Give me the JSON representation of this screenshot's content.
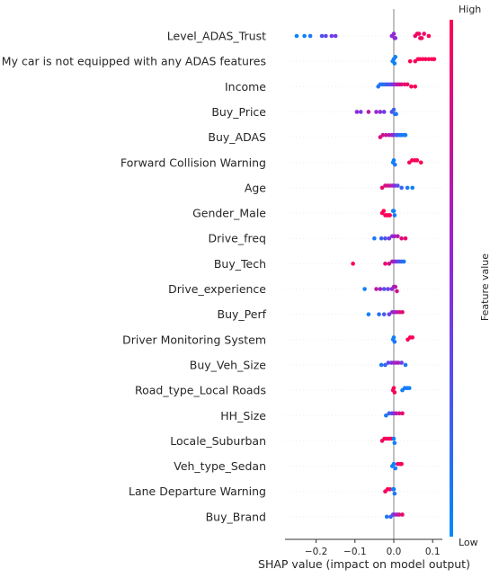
{
  "chart_data": {
    "type": "scatter",
    "subtype": "shap-beeswarm",
    "xlabel": "SHAP value (impact on model output)",
    "xlim": [
      -0.28,
      0.125
    ],
    "x_ticks": [
      -0.2,
      -0.1,
      0.0,
      0.1
    ],
    "x_tick_labels": [
      "−0.2",
      "−0.1",
      "0.0",
      "0.1"
    ],
    "colorbar": {
      "label": "Feature value",
      "high_label": "High",
      "low_label": "Low",
      "low_color": "#008bfb",
      "high_color": "#ff0052"
    },
    "features": [
      {
        "name": "Level_ADAS_Trust",
        "points": [
          {
            "x": -0.25,
            "v": 0.05
          },
          {
            "x": -0.23,
            "v": 0.05
          },
          {
            "x": -0.215,
            "v": 0.1
          },
          {
            "x": -0.185,
            "v": 0.3
          },
          {
            "x": -0.175,
            "v": 0.35
          },
          {
            "x": -0.16,
            "v": 0.4
          },
          {
            "x": -0.15,
            "v": 0.4
          },
          {
            "x": -0.005,
            "v": 0.5
          },
          {
            "x": 0.0,
            "v": 0.55
          },
          {
            "x": 0.002,
            "v": 0.6
          },
          {
            "x": 0.004,
            "v": 0.5
          },
          {
            "x": 0.055,
            "v": 0.9
          },
          {
            "x": 0.06,
            "v": 0.95
          },
          {
            "x": 0.065,
            "v": 0.95
          },
          {
            "x": 0.068,
            "v": 0.9
          },
          {
            "x": 0.072,
            "v": 0.95
          },
          {
            "x": 0.078,
            "v": 0.92
          },
          {
            "x": 0.09,
            "v": 1.0
          }
        ]
      },
      {
        "name": "My car is not equipped with any ADAS features",
        "points": [
          {
            "x": -0.003,
            "v": 0.05
          },
          {
            "x": 0.0,
            "v": 0.05
          },
          {
            "x": 0.002,
            "v": 0.05
          },
          {
            "x": 0.004,
            "v": 0.05
          },
          {
            "x": 0.042,
            "v": 1.0
          },
          {
            "x": 0.055,
            "v": 0.95
          },
          {
            "x": 0.062,
            "v": 1.0
          },
          {
            "x": 0.068,
            "v": 0.98
          },
          {
            "x": 0.075,
            "v": 1.0
          },
          {
            "x": 0.082,
            "v": 0.96
          },
          {
            "x": 0.09,
            "v": 1.0
          },
          {
            "x": 0.098,
            "v": 0.98
          },
          {
            "x": 0.104,
            "v": 1.0
          }
        ]
      },
      {
        "name": "Income",
        "points": [
          {
            "x": -0.04,
            "v": 0.1
          },
          {
            "x": -0.035,
            "v": 0.15
          },
          {
            "x": -0.03,
            "v": 0.1
          },
          {
            "x": -0.025,
            "v": 0.15
          },
          {
            "x": -0.02,
            "v": 0.2
          },
          {
            "x": -0.015,
            "v": 0.3
          },
          {
            "x": -0.01,
            "v": 0.2
          },
          {
            "x": -0.005,
            "v": 0.4
          },
          {
            "x": 0.0,
            "v": 0.5
          },
          {
            "x": 0.005,
            "v": 0.6
          },
          {
            "x": 0.01,
            "v": 0.7
          },
          {
            "x": 0.015,
            "v": 0.8
          },
          {
            "x": 0.02,
            "v": 0.85
          },
          {
            "x": 0.028,
            "v": 0.9
          },
          {
            "x": 0.035,
            "v": 0.95
          },
          {
            "x": 0.045,
            "v": 0.95
          },
          {
            "x": 0.055,
            "v": 1.0
          }
        ]
      },
      {
        "name": "Buy_Price",
        "points": [
          {
            "x": -0.095,
            "v": 0.5
          },
          {
            "x": -0.085,
            "v": 0.45
          },
          {
            "x": -0.065,
            "v": 0.7
          },
          {
            "x": -0.045,
            "v": 0.55
          },
          {
            "x": -0.035,
            "v": 0.5
          },
          {
            "x": -0.025,
            "v": 0.4
          },
          {
            "x": -0.005,
            "v": 0.3
          },
          {
            "x": 0.0,
            "v": 0.2
          },
          {
            "x": 0.003,
            "v": 0.15
          },
          {
            "x": 0.006,
            "v": 0.1
          }
        ]
      },
      {
        "name": "Buy_ADAS",
        "points": [
          {
            "x": -0.035,
            "v": 0.85
          },
          {
            "x": -0.028,
            "v": 0.8
          },
          {
            "x": -0.02,
            "v": 0.75
          },
          {
            "x": -0.012,
            "v": 0.7
          },
          {
            "x": -0.005,
            "v": 0.6
          },
          {
            "x": 0.0,
            "v": 0.5
          },
          {
            "x": 0.006,
            "v": 0.3
          },
          {
            "x": 0.01,
            "v": 0.2
          },
          {
            "x": 0.016,
            "v": 0.15
          },
          {
            "x": 0.02,
            "v": 0.1
          },
          {
            "x": 0.026,
            "v": 0.1
          },
          {
            "x": 0.03,
            "v": 0.05
          }
        ]
      },
      {
        "name": "Forward Collision Warning",
        "points": [
          {
            "x": -0.002,
            "v": 0.05
          },
          {
            "x": 0.0,
            "v": 0.05
          },
          {
            "x": 0.003,
            "v": 0.1
          },
          {
            "x": 0.04,
            "v": 0.95
          },
          {
            "x": 0.047,
            "v": 1.0
          },
          {
            "x": 0.054,
            "v": 0.98
          },
          {
            "x": 0.06,
            "v": 1.0
          },
          {
            "x": 0.07,
            "v": 1.0
          }
        ]
      },
      {
        "name": "Age",
        "points": [
          {
            "x": -0.03,
            "v": 0.9
          },
          {
            "x": -0.022,
            "v": 0.8
          },
          {
            "x": -0.015,
            "v": 0.85
          },
          {
            "x": -0.008,
            "v": 0.7
          },
          {
            "x": -0.002,
            "v": 0.6
          },
          {
            "x": 0.003,
            "v": 0.5
          },
          {
            "x": 0.01,
            "v": 0.3
          },
          {
            "x": 0.02,
            "v": 0.2
          },
          {
            "x": 0.035,
            "v": 0.1
          },
          {
            "x": 0.048,
            "v": 0.05
          }
        ]
      },
      {
        "name": "Gender_Male",
        "points": [
          {
            "x": -0.03,
            "v": 0.95
          },
          {
            "x": -0.026,
            "v": 1.0
          },
          {
            "x": -0.022,
            "v": 0.95
          },
          {
            "x": -0.018,
            "v": 1.0
          },
          {
            "x": -0.014,
            "v": 0.95
          },
          {
            "x": -0.01,
            "v": 1.0
          },
          {
            "x": -0.002,
            "v": 0.05
          },
          {
            "x": 0.0,
            "v": 0.05
          },
          {
            "x": 0.002,
            "v": 0.1
          }
        ]
      },
      {
        "name": "Drive_freq",
        "points": [
          {
            "x": -0.05,
            "v": 0.1
          },
          {
            "x": -0.032,
            "v": 0.2
          },
          {
            "x": -0.022,
            "v": 0.3
          },
          {
            "x": -0.012,
            "v": 0.4
          },
          {
            "x": -0.004,
            "v": 0.5
          },
          {
            "x": 0.002,
            "v": 0.6
          },
          {
            "x": 0.01,
            "v": 0.7
          },
          {
            "x": 0.02,
            "v": 0.85
          },
          {
            "x": 0.03,
            "v": 0.9
          }
        ]
      },
      {
        "name": "Buy_Tech",
        "points": [
          {
            "x": -0.105,
            "v": 1.0
          },
          {
            "x": -0.022,
            "v": 0.9
          },
          {
            "x": -0.012,
            "v": 0.8
          },
          {
            "x": -0.004,
            "v": 0.7
          },
          {
            "x": 0.002,
            "v": 0.5
          },
          {
            "x": 0.008,
            "v": 0.4
          },
          {
            "x": 0.014,
            "v": 0.3
          },
          {
            "x": 0.02,
            "v": 0.2
          },
          {
            "x": 0.026,
            "v": 0.1
          }
        ]
      },
      {
        "name": "Drive_experience",
        "points": [
          {
            "x": -0.075,
            "v": 0.05
          },
          {
            "x": -0.045,
            "v": 0.7
          },
          {
            "x": -0.035,
            "v": 0.6
          },
          {
            "x": -0.025,
            "v": 0.3
          },
          {
            "x": -0.015,
            "v": 0.4
          },
          {
            "x": -0.005,
            "v": 0.5
          },
          {
            "x": 0.0,
            "v": 0.6
          },
          {
            "x": 0.004,
            "v": 0.7
          },
          {
            "x": 0.008,
            "v": 0.8
          }
        ]
      },
      {
        "name": "Buy_Perf",
        "points": [
          {
            "x": -0.065,
            "v": 0.05
          },
          {
            "x": -0.038,
            "v": 0.15
          },
          {
            "x": -0.025,
            "v": 0.25
          },
          {
            "x": -0.012,
            "v": 0.4
          },
          {
            "x": -0.004,
            "v": 0.5
          },
          {
            "x": 0.002,
            "v": 0.6
          },
          {
            "x": 0.008,
            "v": 0.7
          },
          {
            "x": 0.015,
            "v": 0.8
          },
          {
            "x": 0.022,
            "v": 0.9
          }
        ]
      },
      {
        "name": "Driver Monitoring System",
        "points": [
          {
            "x": -0.002,
            "v": 0.05
          },
          {
            "x": 0.0,
            "v": 0.05
          },
          {
            "x": 0.002,
            "v": 0.1
          },
          {
            "x": 0.036,
            "v": 0.95
          },
          {
            "x": 0.042,
            "v": 1.0
          },
          {
            "x": 0.048,
            "v": 0.98
          }
        ]
      },
      {
        "name": "Buy_Veh_Size",
        "points": [
          {
            "x": -0.032,
            "v": 0.1
          },
          {
            "x": -0.022,
            "v": 0.2
          },
          {
            "x": -0.014,
            "v": 0.35
          },
          {
            "x": -0.006,
            "v": 0.45
          },
          {
            "x": 0.0,
            "v": 0.55
          },
          {
            "x": 0.006,
            "v": 0.6
          },
          {
            "x": 0.012,
            "v": 0.65
          },
          {
            "x": 0.02,
            "v": 0.4
          },
          {
            "x": 0.03,
            "v": 0.1
          }
        ]
      },
      {
        "name": "Road_type_Local Roads",
        "points": [
          {
            "x": -0.002,
            "v": 0.95
          },
          {
            "x": 0.0,
            "v": 1.0
          },
          {
            "x": 0.002,
            "v": 0.95
          },
          {
            "x": 0.022,
            "v": 0.05
          },
          {
            "x": 0.028,
            "v": 0.05
          },
          {
            "x": 0.034,
            "v": 0.1
          },
          {
            "x": 0.04,
            "v": 0.05
          }
        ]
      },
      {
        "name": "HH_Size",
        "points": [
          {
            "x": -0.02,
            "v": 0.1
          },
          {
            "x": -0.012,
            "v": 0.2
          },
          {
            "x": -0.005,
            "v": 0.35
          },
          {
            "x": 0.0,
            "v": 0.5
          },
          {
            "x": 0.006,
            "v": 0.65
          },
          {
            "x": 0.014,
            "v": 0.8
          },
          {
            "x": 0.022,
            "v": 0.9
          }
        ]
      },
      {
        "name": "Locale_Suburban",
        "points": [
          {
            "x": -0.03,
            "v": 0.95
          },
          {
            "x": -0.024,
            "v": 1.0
          },
          {
            "x": -0.018,
            "v": 0.95
          },
          {
            "x": -0.012,
            "v": 1.0
          },
          {
            "x": -0.006,
            "v": 0.9
          },
          {
            "x": 0.0,
            "v": 0.05
          },
          {
            "x": 0.002,
            "v": 0.05
          }
        ]
      },
      {
        "name": "Veh_type_Sedan",
        "points": [
          {
            "x": -0.004,
            "v": 0.05
          },
          {
            "x": 0.0,
            "v": 0.05
          },
          {
            "x": 0.004,
            "v": 0.1
          },
          {
            "x": 0.01,
            "v": 0.9
          },
          {
            "x": 0.016,
            "v": 0.95
          },
          {
            "x": 0.02,
            "v": 1.0
          }
        ]
      },
      {
        "name": "Lane Departure Warning",
        "points": [
          {
            "x": -0.022,
            "v": 0.95
          },
          {
            "x": -0.016,
            "v": 1.0
          },
          {
            "x": -0.01,
            "v": 0.95
          },
          {
            "x": -0.002,
            "v": 0.05
          },
          {
            "x": 0.0,
            "v": 0.05
          },
          {
            "x": 0.002,
            "v": 0.1
          }
        ]
      },
      {
        "name": "Buy_Brand",
        "points": [
          {
            "x": -0.018,
            "v": 0.1
          },
          {
            "x": -0.008,
            "v": 0.2
          },
          {
            "x": -0.002,
            "v": 0.35
          },
          {
            "x": 0.002,
            "v": 0.5
          },
          {
            "x": 0.008,
            "v": 0.65
          },
          {
            "x": 0.014,
            "v": 0.8
          },
          {
            "x": 0.022,
            "v": 0.9
          }
        ]
      }
    ]
  }
}
